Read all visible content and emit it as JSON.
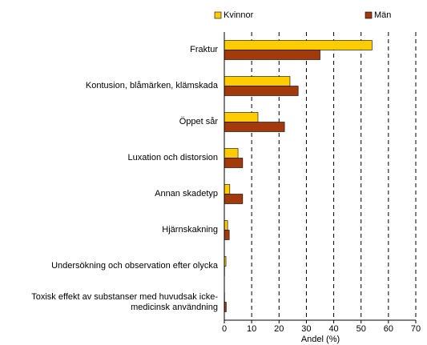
{
  "chart_data": {
    "type": "hbar",
    "categories": [
      "Fraktur",
      "Kontusion, blåmärken, klämskada",
      "Öppet sår",
      "Luxation och distorsion",
      "Annan skadetyp",
      "Hjärnskakning",
      "Undersökning och observation efter olycka",
      "Toxisk effekt av substanser med huvudsak icke-medicinsk användning"
    ],
    "series": [
      {
        "name": "Kvinnor",
        "color": "#FFCC00",
        "values": [
          54,
          24,
          12.3,
          5,
          2,
          1.2,
          0.6,
          0.1
        ]
      },
      {
        "name": "Män",
        "color": "#A33A0B",
        "values": [
          35,
          27,
          22,
          6.7,
          6.7,
          1.8,
          0.1,
          0.7
        ]
      }
    ],
    "xlabel": "Andel (%)",
    "xlim": [
      0,
      70
    ],
    "xticks": [
      0,
      10,
      20,
      30,
      40,
      50,
      60,
      70
    ],
    "grid": true
  }
}
